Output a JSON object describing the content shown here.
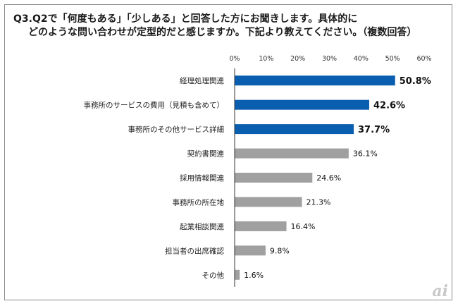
{
  "chart_data": {
    "type": "bar",
    "orientation": "horizontal",
    "title_line1": "Q3.Q2で「何度もある」「少しある」と回答した方にお聞きします。具体的に",
    "title_line2": "どのような問い合わせが定型的だと感じますか。下記より教えてください。（複数回答）",
    "categories": [
      "経理処理関連",
      "事務所のサービスの費用（見積も含めて）",
      "事務所のその他サービス詳細",
      "契約書関連",
      "採用情報関連",
      "事務所の所在地",
      "起業相談関連",
      "担当者の出席確認",
      "その他"
    ],
    "values": [
      50.8,
      42.6,
      37.7,
      36.1,
      24.6,
      21.3,
      16.4,
      9.8,
      1.6
    ],
    "value_labels": [
      "50.8%",
      "42.6%",
      "37.7%",
      "36.1%",
      "24.6%",
      "21.3%",
      "16.4%",
      "9.8%",
      "1.6%"
    ],
    "highlighted_count": 3,
    "xlim": [
      0,
      60
    ],
    "xticks": [
      "0%",
      "10%",
      "20%",
      "30%",
      "40%",
      "50%",
      "60%"
    ],
    "colors": {
      "highlight": "#0a5eb0",
      "normal": "#a0a0a0",
      "axis": "#333333"
    }
  },
  "watermark": "ai"
}
